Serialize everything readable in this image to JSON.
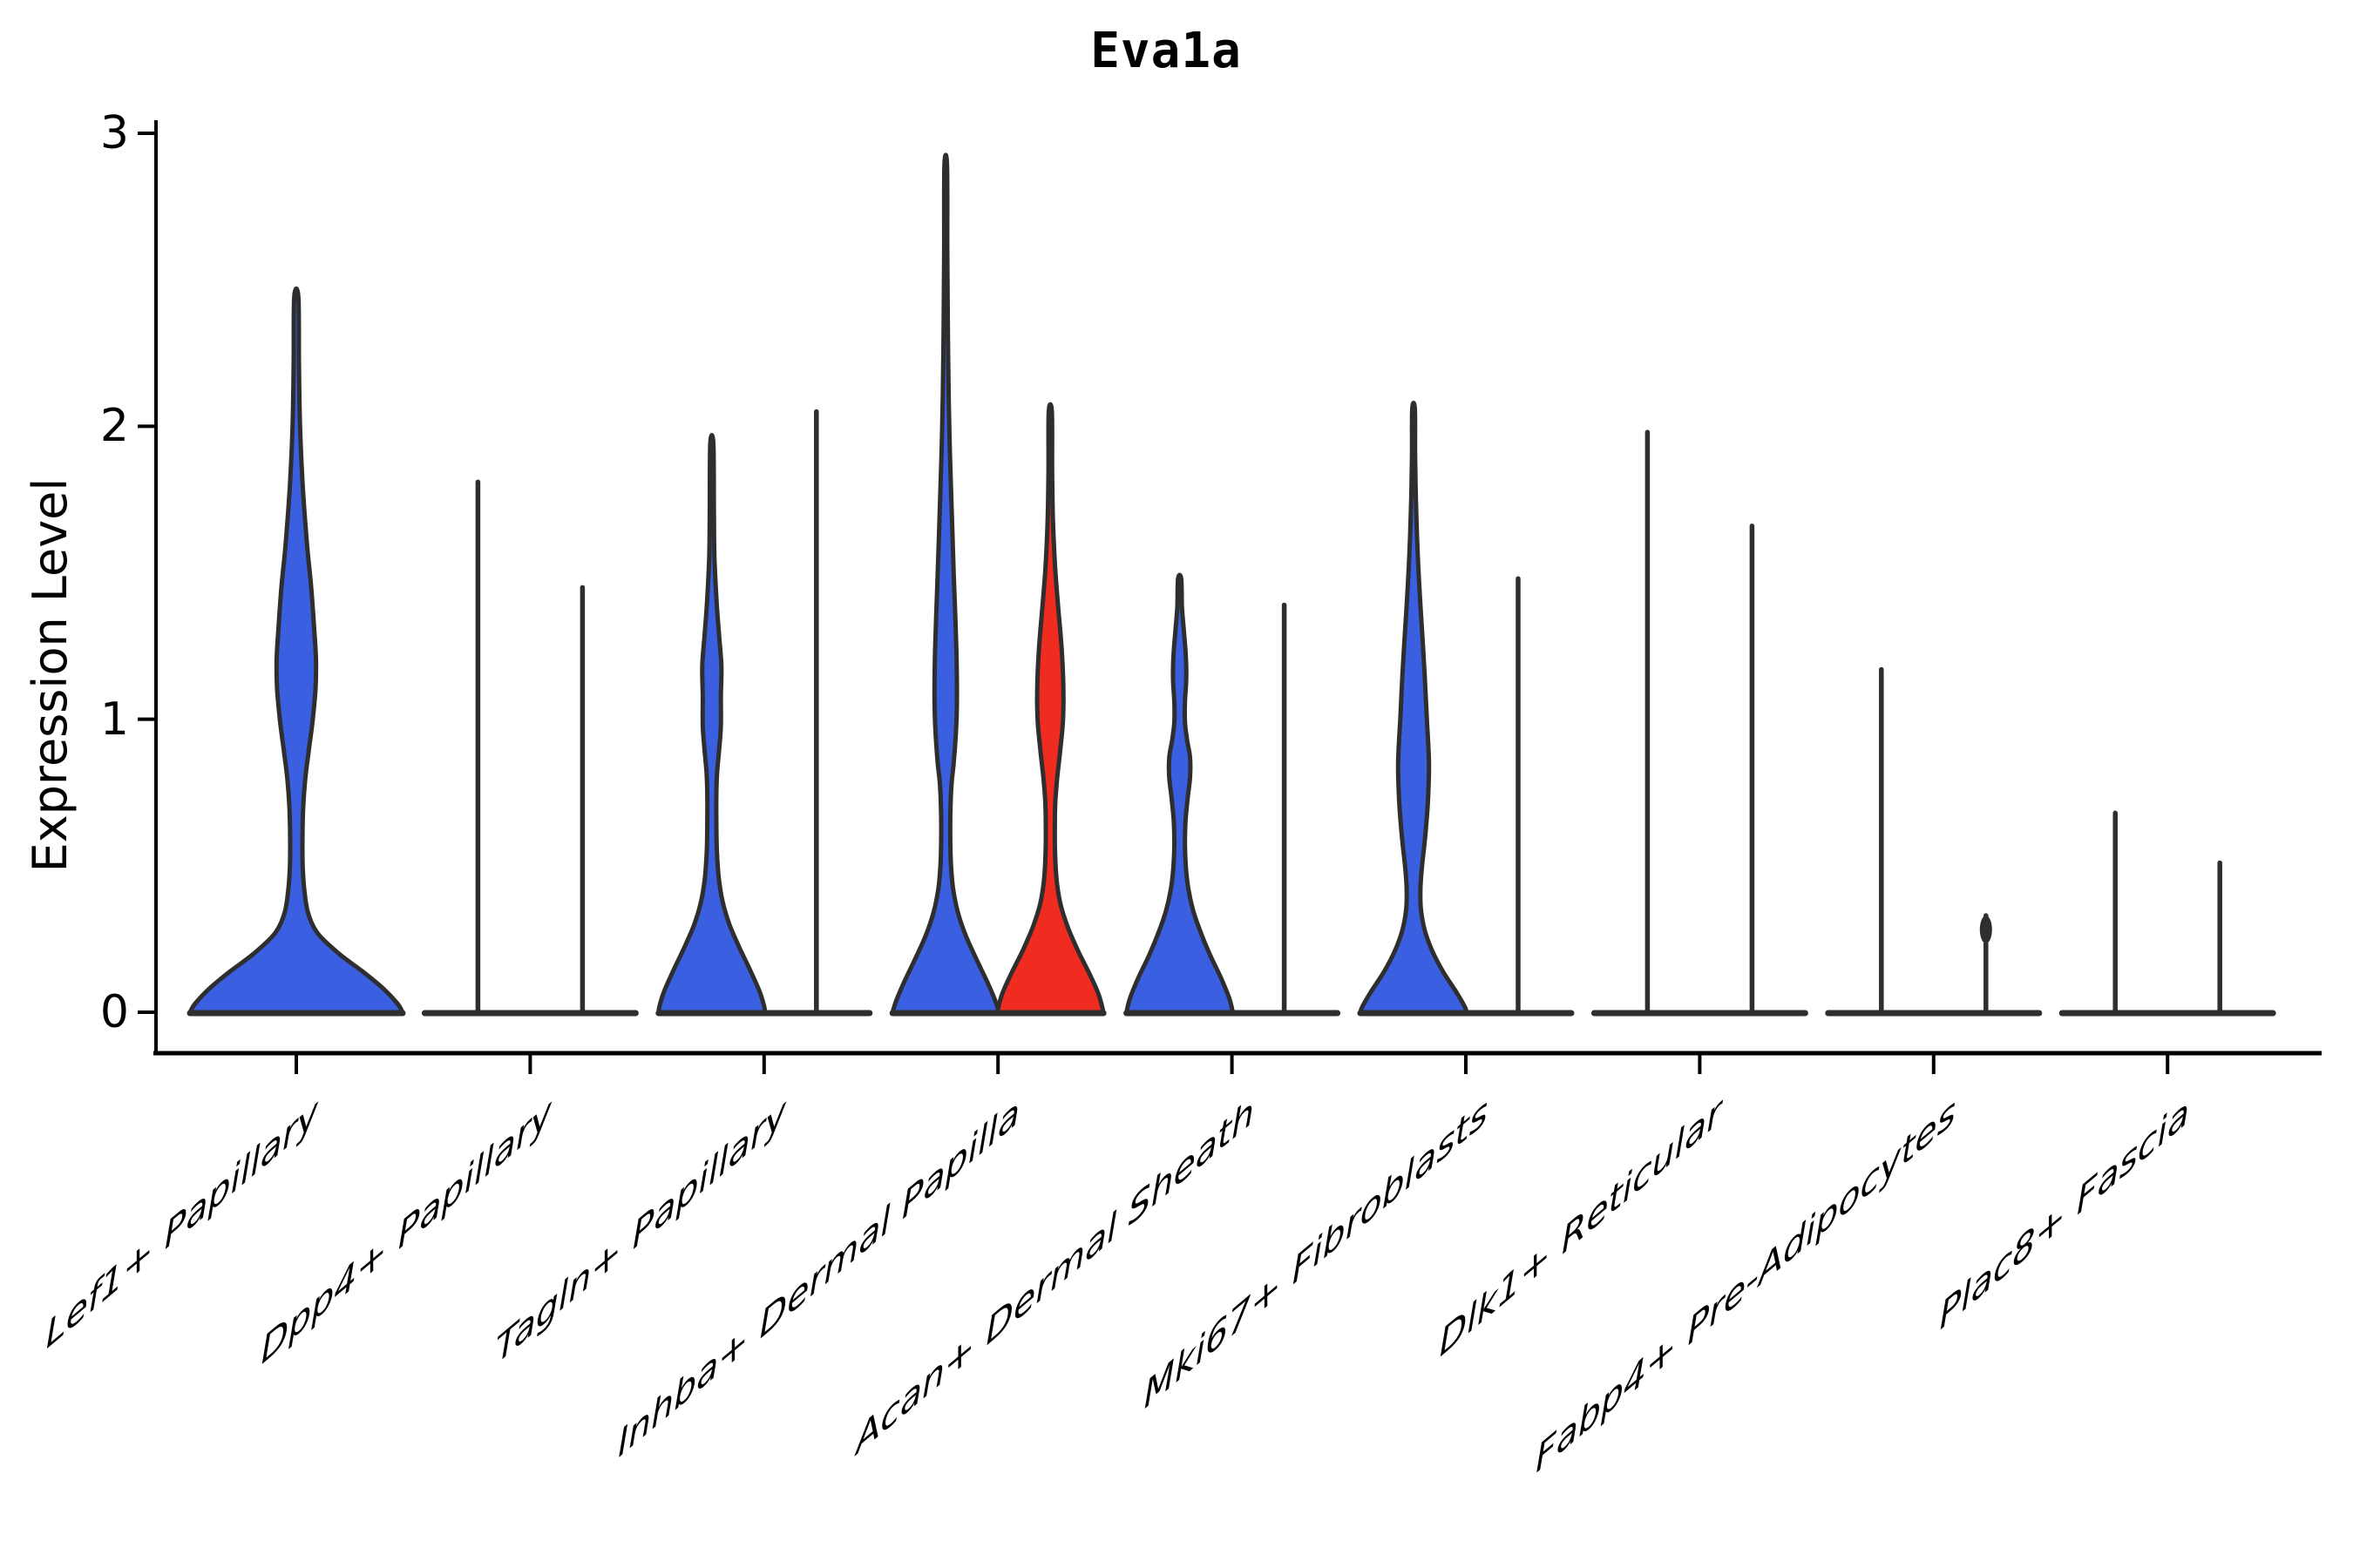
{
  "title": "Eva1a",
  "y_axis": {
    "label": "Expression Level",
    "ticks": [
      "0",
      "1",
      "2",
      "3"
    ],
    "range": [
      0,
      3
    ]
  },
  "x_axis": {
    "categories": [
      "Lef1+ Papillary",
      "Dpp4+ Papillary",
      "Tagln+ Papillary",
      "Inhba+ Dermal Papilla",
      "Acan+ Dermal Sheath",
      "Mki67+ Fibroblasts",
      "Dlk1+ Reticular",
      "Fabp4+ Pre-Adipocytes",
      "Plac8+ Fascia"
    ]
  },
  "colors": {
    "blue": "#3B5FE1",
    "red": "#F02B20",
    "stroke": "#2E2E2E",
    "text": "#000000",
    "background": "#FFFFFF"
  },
  "chart_data": {
    "type": "violin",
    "title": "Eva1a",
    "xlabel": "",
    "ylabel": "Expression Level",
    "ylim": [
      0,
      3
    ],
    "ytick_values": [
      0,
      1,
      2,
      3
    ],
    "grid": false,
    "legend": "none",
    "categories": [
      "Lef1+ Papillary",
      "Dpp4+ Papillary",
      "Tagln+ Papillary",
      "Inhba+ Dermal Papilla",
      "Acan+ Dermal Sheath",
      "Mki67+ Fibroblasts",
      "Dlk1+ Reticular",
      "Fabp4+ Pre-Adipocytes",
      "Plac8+ Fascia"
    ],
    "groups_per_category": 2,
    "violins": [
      {
        "category_index": 0,
        "category": "Lef1+ Papillary",
        "group": 1,
        "style": "filled",
        "color_key": "blue",
        "max_expression": 2.44,
        "offset": 0,
        "max_halfwidth": 122,
        "profile": [
          [
            2.44,
            0.02
          ],
          [
            2.2,
            0.025
          ],
          [
            2.0,
            0.035
          ],
          [
            1.8,
            0.06
          ],
          [
            1.6,
            0.1
          ],
          [
            1.45,
            0.14
          ],
          [
            1.3,
            0.17
          ],
          [
            1.2,
            0.185
          ],
          [
            1.1,
            0.18
          ],
          [
            1.0,
            0.155
          ],
          [
            0.9,
            0.12
          ],
          [
            0.8,
            0.085
          ],
          [
            0.7,
            0.065
          ],
          [
            0.6,
            0.058
          ],
          [
            0.5,
            0.06
          ],
          [
            0.42,
            0.075
          ],
          [
            0.34,
            0.11
          ],
          [
            0.27,
            0.2
          ],
          [
            0.2,
            0.4
          ],
          [
            0.14,
            0.62
          ],
          [
            0.08,
            0.82
          ],
          [
            0.03,
            0.95
          ],
          [
            0.0,
            1.0
          ]
        ]
      },
      {
        "category_index": 1,
        "category": "Dpp4+ Papillary",
        "group": 1,
        "style": "line",
        "color_key": "blue",
        "max_expression": 1.81,
        "offset": -60,
        "max_halfwidth": 61
      },
      {
        "category_index": 1,
        "category": "Dpp4+ Papillary",
        "group": 2,
        "style": "line",
        "color_key": "red",
        "max_expression": 1.45,
        "offset": 60,
        "max_halfwidth": 61
      },
      {
        "category_index": 2,
        "category": "Tagln+ Papillary",
        "group": 1,
        "style": "filled",
        "color_key": "blue",
        "max_expression": 1.94,
        "offset": -60,
        "max_halfwidth": 61,
        "profile": [
          [
            1.94,
            0.03
          ],
          [
            1.7,
            0.04
          ],
          [
            1.55,
            0.05
          ],
          [
            1.4,
            0.09
          ],
          [
            1.28,
            0.14
          ],
          [
            1.18,
            0.18
          ],
          [
            1.08,
            0.17
          ],
          [
            0.98,
            0.17
          ],
          [
            0.9,
            0.14
          ],
          [
            0.82,
            0.1
          ],
          [
            0.74,
            0.085
          ],
          [
            0.65,
            0.085
          ],
          [
            0.55,
            0.095
          ],
          [
            0.46,
            0.13
          ],
          [
            0.38,
            0.2
          ],
          [
            0.3,
            0.33
          ],
          [
            0.22,
            0.52
          ],
          [
            0.14,
            0.73
          ],
          [
            0.07,
            0.9
          ],
          [
            0.02,
            0.985
          ],
          [
            0.0,
            1.0
          ]
        ]
      },
      {
        "category_index": 2,
        "category": "Tagln+ Papillary",
        "group": 2,
        "style": "line",
        "color_key": "red",
        "max_expression": 2.05,
        "offset": 60,
        "max_halfwidth": 61
      },
      {
        "category_index": 3,
        "category": "Inhba+ Dermal Papilla",
        "group": 1,
        "style": "filled",
        "color_key": "blue",
        "max_expression": 2.89,
        "offset": -60,
        "max_halfwidth": 61,
        "profile": [
          [
            2.89,
            0.025
          ],
          [
            2.6,
            0.03
          ],
          [
            2.35,
            0.04
          ],
          [
            2.1,
            0.055
          ],
          [
            1.9,
            0.08
          ],
          [
            1.7,
            0.115
          ],
          [
            1.5,
            0.15
          ],
          [
            1.35,
            0.18
          ],
          [
            1.2,
            0.205
          ],
          [
            1.05,
            0.21
          ],
          [
            0.95,
            0.19
          ],
          [
            0.85,
            0.15
          ],
          [
            0.78,
            0.11
          ],
          [
            0.7,
            0.09
          ],
          [
            0.6,
            0.085
          ],
          [
            0.5,
            0.1
          ],
          [
            0.42,
            0.14
          ],
          [
            0.34,
            0.23
          ],
          [
            0.26,
            0.38
          ],
          [
            0.18,
            0.58
          ],
          [
            0.1,
            0.79
          ],
          [
            0.04,
            0.93
          ],
          [
            0.0,
            1.0
          ]
        ]
      },
      {
        "category_index": 3,
        "category": "Inhba+ Dermal Papilla",
        "group": 2,
        "style": "filled",
        "color_key": "red",
        "max_expression": 2.05,
        "offset": 60,
        "max_halfwidth": 61,
        "profile": [
          [
            2.05,
            0.03
          ],
          [
            1.85,
            0.035
          ],
          [
            1.68,
            0.05
          ],
          [
            1.52,
            0.09
          ],
          [
            1.38,
            0.15
          ],
          [
            1.25,
            0.21
          ],
          [
            1.12,
            0.245
          ],
          [
            1.0,
            0.24
          ],
          [
            0.9,
            0.19
          ],
          [
            0.8,
            0.13
          ],
          [
            0.72,
            0.095
          ],
          [
            0.63,
            0.085
          ],
          [
            0.54,
            0.09
          ],
          [
            0.45,
            0.12
          ],
          [
            0.37,
            0.19
          ],
          [
            0.29,
            0.33
          ],
          [
            0.21,
            0.52
          ],
          [
            0.13,
            0.74
          ],
          [
            0.06,
            0.91
          ],
          [
            0.0,
            1.0
          ]
        ]
      },
      {
        "category_index": 4,
        "category": "Acan+ Dermal Sheath",
        "group": 1,
        "style": "filled",
        "color_key": "blue",
        "max_expression": 1.48,
        "offset": -60,
        "max_halfwidth": 61,
        "profile": [
          [
            1.48,
            0.03
          ],
          [
            1.38,
            0.045
          ],
          [
            1.3,
            0.08
          ],
          [
            1.22,
            0.115
          ],
          [
            1.14,
            0.125
          ],
          [
            1.06,
            0.1
          ],
          [
            0.99,
            0.1
          ],
          [
            0.93,
            0.14
          ],
          [
            0.87,
            0.195
          ],
          [
            0.8,
            0.195
          ],
          [
            0.73,
            0.15
          ],
          [
            0.65,
            0.11
          ],
          [
            0.57,
            0.1
          ],
          [
            0.49,
            0.12
          ],
          [
            0.42,
            0.165
          ],
          [
            0.35,
            0.25
          ],
          [
            0.28,
            0.38
          ],
          [
            0.2,
            0.56
          ],
          [
            0.12,
            0.77
          ],
          [
            0.05,
            0.93
          ],
          [
            0.0,
            1.0
          ]
        ]
      },
      {
        "category_index": 4,
        "category": "Acan+ Dermal Sheath",
        "group": 2,
        "style": "line",
        "color_key": "red",
        "max_expression": 1.39,
        "offset": 60,
        "max_halfwidth": 61
      },
      {
        "category_index": 5,
        "category": "Mki67+ Fibroblasts",
        "group": 1,
        "style": "filled",
        "color_key": "blue",
        "max_expression": 2.06,
        "offset": -60,
        "max_halfwidth": 61,
        "profile": [
          [
            2.06,
            0.025
          ],
          [
            1.9,
            0.03
          ],
          [
            1.75,
            0.045
          ],
          [
            1.6,
            0.07
          ],
          [
            1.45,
            0.11
          ],
          [
            1.3,
            0.16
          ],
          [
            1.15,
            0.21
          ],
          [
            1.0,
            0.25
          ],
          [
            0.85,
            0.29
          ],
          [
            0.72,
            0.27
          ],
          [
            0.6,
            0.22
          ],
          [
            0.5,
            0.16
          ],
          [
            0.42,
            0.13
          ],
          [
            0.35,
            0.14
          ],
          [
            0.28,
            0.21
          ],
          [
            0.21,
            0.35
          ],
          [
            0.14,
            0.55
          ],
          [
            0.07,
            0.8
          ],
          [
            0.02,
            0.96
          ],
          [
            0.0,
            1.0
          ]
        ]
      },
      {
        "category_index": 5,
        "category": "Mki67+ Fibroblasts",
        "group": 2,
        "style": "line",
        "color_key": "red",
        "max_expression": 1.48,
        "offset": 60,
        "max_halfwidth": 61
      },
      {
        "category_index": 6,
        "category": "Dlk1+ Reticular",
        "group": 1,
        "style": "line",
        "color_key": "blue",
        "max_expression": 1.98,
        "offset": -60,
        "max_halfwidth": 61
      },
      {
        "category_index": 6,
        "category": "Dlk1+ Reticular",
        "group": 2,
        "style": "line",
        "color_key": "red",
        "max_expression": 1.66,
        "offset": 60,
        "max_halfwidth": 61
      },
      {
        "category_index": 7,
        "category": "Fabp4+ Pre-Adipocytes",
        "group": 1,
        "style": "line",
        "color_key": "blue",
        "max_expression": 1.17,
        "offset": -60,
        "max_halfwidth": 61
      },
      {
        "category_index": 7,
        "category": "Fabp4+ Pre-Adipocytes",
        "group": 2,
        "style": "line",
        "color_key": "red",
        "max_expression": 0.33,
        "offset": 60,
        "max_halfwidth": 61,
        "knob_at_top": true
      },
      {
        "category_index": 8,
        "category": "Plac8+ Fascia",
        "group": 1,
        "style": "line",
        "color_key": "blue",
        "max_expression": 0.68,
        "offset": -60,
        "max_halfwidth": 61
      },
      {
        "category_index": 8,
        "category": "Plac8+ Fascia",
        "group": 2,
        "style": "line",
        "color_key": "red",
        "max_expression": 0.51,
        "offset": 60,
        "max_halfwidth": 61
      }
    ]
  }
}
